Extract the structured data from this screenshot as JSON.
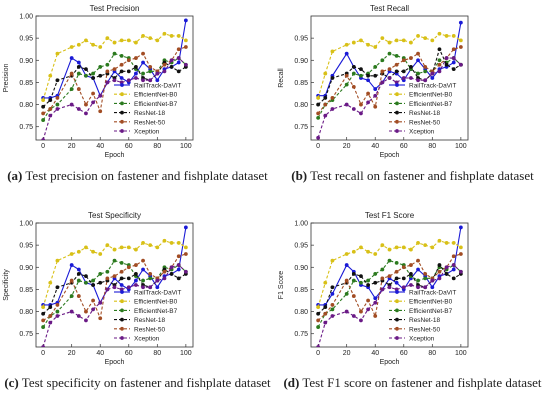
{
  "chart_data": [
    {
      "type": "line",
      "title": "Test Precision",
      "xlabel": "Epoch",
      "ylabel": "Precision",
      "ylim": [
        0.72,
        1.0
      ],
      "yticks": [
        "0.75",
        "0.80",
        "0.85",
        "0.90",
        "0.95",
        "1.00"
      ],
      "xlim": [
        -5,
        105
      ],
      "xticks": [
        "0",
        "20",
        "40",
        "60",
        "80",
        "100"
      ],
      "x": [
        0,
        5,
        10,
        20,
        25,
        30,
        35,
        40,
        45,
        50,
        55,
        60,
        65,
        70,
        75,
        80,
        85,
        90,
        95,
        100
      ],
      "legend_position": "lower-right",
      "grid": false,
      "caption_label": "(a)",
      "caption_text": "Test precision on fastener and fishplate dataset",
      "series": [
        {
          "name": "RailTrack-DaViT",
          "color": "#1a1ad6",
          "marker": "circle",
          "dash": "solid",
          "values": [
            0.815,
            0.815,
            0.82,
            0.905,
            0.895,
            0.865,
            0.86,
            0.82,
            0.85,
            0.875,
            0.86,
            0.85,
            0.87,
            0.895,
            0.88,
            0.855,
            0.88,
            0.885,
            0.895,
            0.99
          ]
        },
        {
          "name": "EfficientNet-B0",
          "color": "#d8c017",
          "marker": "circle",
          "dash": "dash",
          "values": [
            0.81,
            0.865,
            0.915,
            0.93,
            0.935,
            0.945,
            0.935,
            0.93,
            0.95,
            0.94,
            0.945,
            0.945,
            0.94,
            0.955,
            0.95,
            0.945,
            0.96,
            0.955,
            0.955,
            0.945
          ]
        },
        {
          "name": "EfficientNet-B7",
          "color": "#2b7a1e",
          "marker": "circle",
          "dash": "dash",
          "values": [
            0.765,
            0.79,
            0.8,
            0.835,
            0.87,
            0.865,
            0.87,
            0.885,
            0.89,
            0.915,
            0.91,
            0.905,
            0.88,
            0.87,
            0.875,
            0.875,
            0.9,
            0.895,
            0.905,
            0.89
          ]
        },
        {
          "name": "ResNet-18",
          "color": "#111111",
          "marker": "circle",
          "dash": "dash",
          "values": [
            0.795,
            0.81,
            0.855,
            0.865,
            0.885,
            0.88,
            0.86,
            0.865,
            0.87,
            0.86,
            0.875,
            0.875,
            0.885,
            0.86,
            0.855,
            0.87,
            0.895,
            0.885,
            0.875,
            0.885
          ]
        },
        {
          "name": "ResNet-50",
          "color": "#a24d24",
          "marker": "circle",
          "dash": "dash",
          "values": [
            0.78,
            0.79,
            0.815,
            0.87,
            0.835,
            0.8,
            0.825,
            0.785,
            0.875,
            0.88,
            0.89,
            0.9,
            0.905,
            0.915,
            0.885,
            0.875,
            0.89,
            0.9,
            0.925,
            0.93
          ]
        },
        {
          "name": "Xception",
          "color": "#6a1a86",
          "marker": "circle",
          "dash": "dash",
          "values": [
            0.72,
            0.775,
            0.79,
            0.8,
            0.79,
            0.78,
            0.805,
            0.82,
            0.85,
            0.855,
            0.85,
            0.855,
            0.86,
            0.855,
            0.855,
            0.87,
            0.875,
            0.9,
            0.905,
            0.89
          ]
        }
      ]
    },
    {
      "type": "line",
      "title": "Test Recall",
      "xlabel": "Epoch",
      "ylabel": "Recall",
      "ylim": [
        0.72,
        1.0
      ],
      "yticks": [
        "0.75",
        "0.80",
        "0.85",
        "0.90",
        "0.95"
      ],
      "xlim": [
        -5,
        105
      ],
      "xticks": [
        "0",
        "20",
        "40",
        "60",
        "80",
        "100"
      ],
      "x": [
        0,
        5,
        10,
        20,
        25,
        30,
        35,
        40,
        45,
        50,
        55,
        60,
        65,
        70,
        75,
        80,
        85,
        90,
        95,
        100
      ],
      "legend_position": "lower-right",
      "grid": false,
      "caption_label": "(b)",
      "caption_text": "Test recall on fastener and fishplate dataset",
      "series": [
        {
          "name": "RailTrack-DaViT",
          "color": "#1a1ad6",
          "marker": "circle",
          "dash": "solid",
          "values": [
            0.82,
            0.82,
            0.865,
            0.915,
            0.885,
            0.86,
            0.855,
            0.835,
            0.85,
            0.875,
            0.87,
            0.855,
            0.88,
            0.9,
            0.88,
            0.86,
            0.88,
            0.885,
            0.895,
            0.985
          ]
        },
        {
          "name": "EfficientNet-B0",
          "color": "#d8c017",
          "marker": "circle",
          "dash": "dash",
          "values": [
            0.815,
            0.87,
            0.92,
            0.935,
            0.94,
            0.945,
            0.935,
            0.93,
            0.95,
            0.94,
            0.945,
            0.945,
            0.94,
            0.955,
            0.95,
            0.945,
            0.96,
            0.955,
            0.955,
            0.945
          ]
        },
        {
          "name": "EfficientNet-B7",
          "color": "#2b7a1e",
          "marker": "circle",
          "dash": "dash",
          "values": [
            0.77,
            0.8,
            0.81,
            0.845,
            0.87,
            0.865,
            0.87,
            0.885,
            0.9,
            0.915,
            0.91,
            0.905,
            0.88,
            0.87,
            0.875,
            0.875,
            0.9,
            0.895,
            0.905,
            0.89
          ]
        },
        {
          "name": "ResNet-18",
          "color": "#111111",
          "marker": "circle",
          "dash": "dash",
          "values": [
            0.8,
            0.815,
            0.86,
            0.87,
            0.885,
            0.88,
            0.865,
            0.865,
            0.87,
            0.86,
            0.875,
            0.875,
            0.885,
            0.86,
            0.855,
            0.87,
            0.925,
            0.89,
            0.88,
            0.89
          ]
        },
        {
          "name": "ResNet-50",
          "color": "#a24d24",
          "marker": "circle",
          "dash": "dash",
          "values": [
            0.78,
            0.8,
            0.815,
            0.865,
            0.84,
            0.8,
            0.825,
            0.795,
            0.875,
            0.88,
            0.89,
            0.9,
            0.905,
            0.915,
            0.885,
            0.875,
            0.89,
            0.905,
            0.925,
            0.93
          ]
        },
        {
          "name": "Xception",
          "color": "#6a1a86",
          "marker": "circle",
          "dash": "dash",
          "values": [
            0.725,
            0.775,
            0.79,
            0.8,
            0.79,
            0.78,
            0.805,
            0.82,
            0.85,
            0.86,
            0.85,
            0.86,
            0.86,
            0.855,
            0.855,
            0.87,
            0.875,
            0.905,
            0.905,
            0.89
          ]
        }
      ]
    },
    {
      "type": "line",
      "title": "Test Specificity",
      "xlabel": "Epoch",
      "ylabel": "Specificity",
      "ylim": [
        0.72,
        1.0
      ],
      "yticks": [
        "0.75",
        "0.80",
        "0.85",
        "0.90",
        "0.95",
        "1.00"
      ],
      "xlim": [
        -5,
        105
      ],
      "xticks": [
        "0",
        "20",
        "40",
        "60",
        "80",
        "100"
      ],
      "x": [
        0,
        5,
        10,
        20,
        25,
        30,
        35,
        40,
        45,
        50,
        55,
        60,
        65,
        70,
        75,
        80,
        85,
        90,
        95,
        100
      ],
      "legend_position": "lower-right",
      "grid": false,
      "caption_label": "(c)",
      "caption_text": "Test specificity on fastener and fishplate dataset",
      "series": [
        {
          "name": "RailTrack-DaViT",
          "color": "#1a1ad6",
          "marker": "circle",
          "dash": "solid",
          "values": [
            0.815,
            0.815,
            0.82,
            0.905,
            0.895,
            0.865,
            0.86,
            0.82,
            0.85,
            0.875,
            0.86,
            0.85,
            0.87,
            0.895,
            0.88,
            0.855,
            0.88,
            0.885,
            0.895,
            0.99
          ]
        },
        {
          "name": "EfficientNet-B0",
          "color": "#d8c017",
          "marker": "circle",
          "dash": "dash",
          "values": [
            0.81,
            0.865,
            0.915,
            0.93,
            0.935,
            0.945,
            0.935,
            0.93,
            0.95,
            0.94,
            0.945,
            0.945,
            0.94,
            0.955,
            0.95,
            0.945,
            0.96,
            0.955,
            0.955,
            0.945
          ]
        },
        {
          "name": "EfficientNet-B7",
          "color": "#2b7a1e",
          "marker": "circle",
          "dash": "dash",
          "values": [
            0.765,
            0.79,
            0.8,
            0.835,
            0.87,
            0.865,
            0.87,
            0.885,
            0.89,
            0.915,
            0.91,
            0.905,
            0.88,
            0.87,
            0.875,
            0.875,
            0.9,
            0.895,
            0.905,
            0.89
          ]
        },
        {
          "name": "ResNet-18",
          "color": "#111111",
          "marker": "circle",
          "dash": "dash",
          "values": [
            0.795,
            0.81,
            0.855,
            0.865,
            0.885,
            0.88,
            0.86,
            0.865,
            0.87,
            0.86,
            0.875,
            0.875,
            0.885,
            0.86,
            0.855,
            0.87,
            0.895,
            0.885,
            0.875,
            0.885
          ]
        },
        {
          "name": "ResNet-50",
          "color": "#a24d24",
          "marker": "circle",
          "dash": "dash",
          "values": [
            0.78,
            0.79,
            0.815,
            0.87,
            0.835,
            0.8,
            0.825,
            0.785,
            0.875,
            0.88,
            0.89,
            0.9,
            0.905,
            0.915,
            0.885,
            0.875,
            0.89,
            0.9,
            0.925,
            0.93
          ]
        },
        {
          "name": "Xception",
          "color": "#6a1a86",
          "marker": "circle",
          "dash": "dash",
          "values": [
            0.72,
            0.775,
            0.79,
            0.8,
            0.79,
            0.78,
            0.805,
            0.82,
            0.85,
            0.855,
            0.85,
            0.855,
            0.86,
            0.855,
            0.855,
            0.87,
            0.875,
            0.9,
            0.905,
            0.89
          ]
        }
      ]
    },
    {
      "type": "line",
      "title": "Test F1 Score",
      "xlabel": "Epoch",
      "ylabel": "F1 Score",
      "ylim": [
        0.72,
        1.0
      ],
      "yticks": [
        "0.75",
        "0.80",
        "0.85",
        "0.90",
        "0.95",
        "1.00"
      ],
      "xlim": [
        -5,
        105
      ],
      "xticks": [
        "0",
        "20",
        "40",
        "60",
        "80",
        "100"
      ],
      "x": [
        0,
        5,
        10,
        20,
        25,
        30,
        35,
        40,
        45,
        50,
        55,
        60,
        65,
        70,
        75,
        80,
        85,
        90,
        95,
        100
      ],
      "legend_position": "lower-right",
      "grid": false,
      "caption_label": "(d)",
      "caption_text": "Test F1 score on fastener and fishplate dataset",
      "series": [
        {
          "name": "RailTrack-DaViT",
          "color": "#1a1ad6",
          "marker": "circle",
          "dash": "solid",
          "values": [
            0.815,
            0.815,
            0.84,
            0.905,
            0.89,
            0.86,
            0.855,
            0.83,
            0.85,
            0.875,
            0.865,
            0.85,
            0.875,
            0.895,
            0.88,
            0.855,
            0.88,
            0.885,
            0.895,
            0.99
          ]
        },
        {
          "name": "EfficientNet-B0",
          "color": "#d8c017",
          "marker": "circle",
          "dash": "dash",
          "values": [
            0.81,
            0.865,
            0.915,
            0.93,
            0.935,
            0.945,
            0.935,
            0.93,
            0.95,
            0.94,
            0.945,
            0.945,
            0.94,
            0.955,
            0.95,
            0.945,
            0.96,
            0.955,
            0.955,
            0.945
          ]
        },
        {
          "name": "EfficientNet-B7",
          "color": "#2b7a1e",
          "marker": "circle",
          "dash": "dash",
          "values": [
            0.765,
            0.795,
            0.805,
            0.84,
            0.87,
            0.865,
            0.87,
            0.885,
            0.895,
            0.915,
            0.91,
            0.905,
            0.88,
            0.87,
            0.875,
            0.875,
            0.9,
            0.895,
            0.905,
            0.89
          ]
        },
        {
          "name": "ResNet-18",
          "color": "#111111",
          "marker": "circle",
          "dash": "dash",
          "values": [
            0.795,
            0.81,
            0.855,
            0.865,
            0.885,
            0.88,
            0.86,
            0.865,
            0.87,
            0.86,
            0.875,
            0.875,
            0.885,
            0.86,
            0.855,
            0.87,
            0.905,
            0.885,
            0.875,
            0.885
          ]
        },
        {
          "name": "ResNet-50",
          "color": "#a24d24",
          "marker": "circle",
          "dash": "dash",
          "values": [
            0.78,
            0.795,
            0.815,
            0.87,
            0.835,
            0.8,
            0.825,
            0.79,
            0.875,
            0.88,
            0.89,
            0.9,
            0.905,
            0.915,
            0.885,
            0.875,
            0.89,
            0.9,
            0.925,
            0.93
          ]
        },
        {
          "name": "Xception",
          "color": "#6a1a86",
          "marker": "circle",
          "dash": "dash",
          "values": [
            0.72,
            0.775,
            0.79,
            0.8,
            0.79,
            0.78,
            0.805,
            0.82,
            0.85,
            0.855,
            0.85,
            0.855,
            0.86,
            0.855,
            0.855,
            0.87,
            0.875,
            0.9,
            0.905,
            0.89
          ]
        }
      ]
    }
  ]
}
